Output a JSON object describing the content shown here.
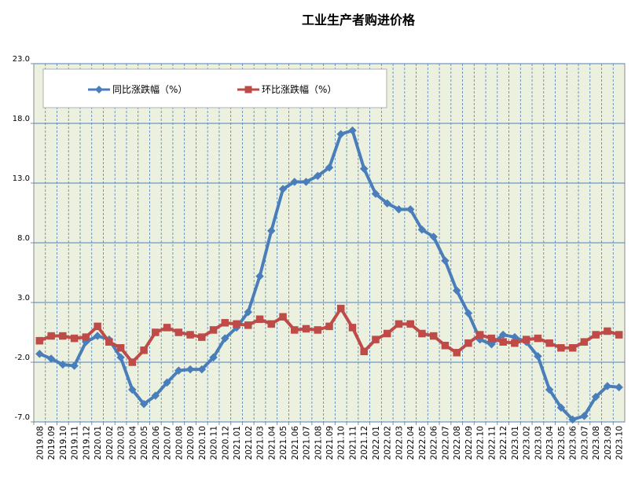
{
  "chart_data": {
    "type": "line",
    "title": "工业生产者购进价格",
    "xlabel": "",
    "ylabel": "",
    "ylim": [
      -7.0,
      23.0
    ],
    "yticks": [
      "-7.0",
      "-2.0",
      "3.0",
      "8.0",
      "13.0",
      "18.0",
      "23.0"
    ],
    "grid": true,
    "legend_position": "top-left",
    "categories": [
      "2019.08",
      "2019.09",
      "2019.10",
      "2019.11",
      "2019.12",
      "2020.01",
      "2020.02",
      "2020.03",
      "2020.04",
      "2020.05",
      "2020.06",
      "2020.07",
      "2020.08",
      "2020.09",
      "2020.10",
      "2020.11",
      "2020.12",
      "2021.01",
      "2021.02",
      "2021.03",
      "2021.04",
      "2021.05",
      "2021.06",
      "2021.07",
      "2021.08",
      "2021.09",
      "2021.10",
      "2021.11",
      "2021.12",
      "2022.01",
      "2022.02",
      "2022.03",
      "2022.04",
      "2022.05",
      "2022.06",
      "2022.07",
      "2022.08",
      "2022.09",
      "2022.10",
      "2022.11",
      "2022.12",
      "2023.01",
      "2023.02",
      "2023.03",
      "2023.04",
      "2023.05",
      "2023.06",
      "2023.07",
      "2023.08",
      "2023.09",
      "2023.10"
    ],
    "series": [
      {
        "name": "同比涨跌幅（%）",
        "color": "#4a7ebb",
        "marker": "diamond",
        "values": [
          -1.3,
          -1.7,
          -2.2,
          -2.3,
          -0.3,
          0.2,
          -0.1,
          -1.6,
          -4.3,
          -5.5,
          -4.8,
          -3.7,
          -2.7,
          -2.6,
          -2.6,
          -1.6,
          0.0,
          0.9,
          2.2,
          5.2,
          9.0,
          12.5,
          13.1,
          13.1,
          13.6,
          14.3,
          17.1,
          17.4,
          14.2,
          12.1,
          11.3,
          10.8,
          10.8,
          9.1,
          8.5,
          6.5,
          4.0,
          2.1,
          -0.1,
          -0.5,
          0.3,
          0.1,
          -0.3,
          -1.5,
          -4.3,
          -5.8,
          -6.8,
          -6.5,
          -4.9,
          -4.0,
          -4.1
        ]
      },
      {
        "name": "环比涨跌幅（%）",
        "color": "#be4b48",
        "marker": "square",
        "values": [
          -0.2,
          0.2,
          0.2,
          0.0,
          0.1,
          1.0,
          -0.3,
          -0.8,
          -2.0,
          -1.0,
          0.5,
          0.9,
          0.5,
          0.3,
          0.1,
          0.7,
          1.3,
          1.2,
          1.1,
          1.6,
          1.2,
          1.8,
          0.7,
          0.8,
          0.7,
          1.0,
          2.5,
          0.9,
          -1.1,
          -0.1,
          0.4,
          1.2,
          1.2,
          0.4,
          0.2,
          -0.6,
          -1.2,
          -0.4,
          0.3,
          0.0,
          -0.3,
          -0.4,
          -0.1,
          0.0,
          -0.4,
          -0.8,
          -0.8,
          -0.3,
          0.3,
          0.6,
          0.3
        ]
      }
    ]
  }
}
